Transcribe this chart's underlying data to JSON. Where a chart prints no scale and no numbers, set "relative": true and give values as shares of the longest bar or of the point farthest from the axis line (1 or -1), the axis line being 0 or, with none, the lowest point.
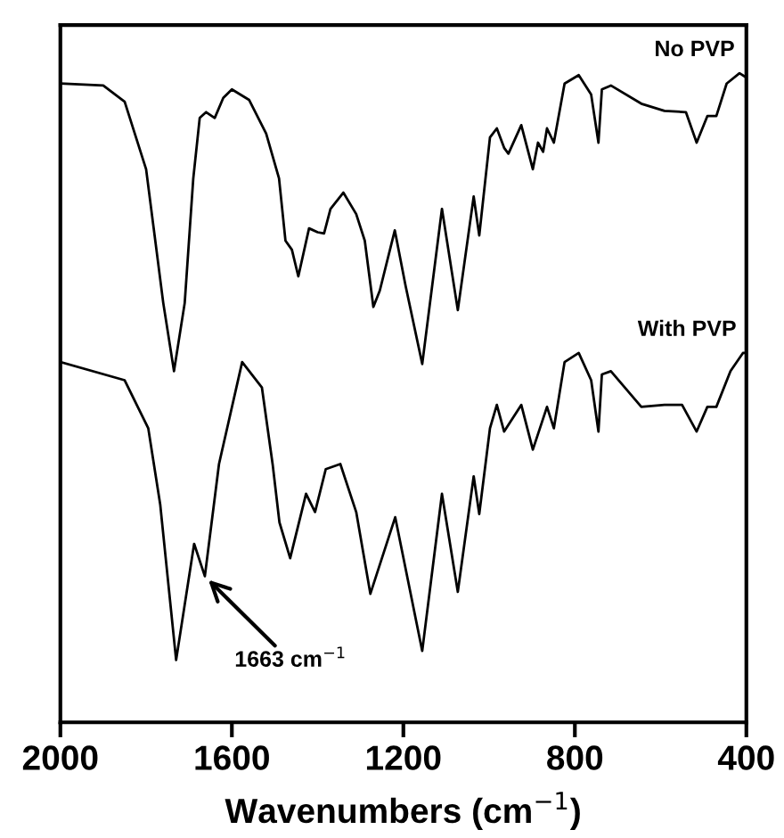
{
  "chart_data": {
    "type": "line",
    "relative": true,
    "xlabel": "Wavenumbers (cm$^{−1}$)",
    "xlim": [
      2000,
      400
    ],
    "xticks": [
      2000,
      1600,
      1200,
      800,
      400
    ],
    "grid": false,
    "legend": false,
    "marker": "none",
    "line_style": "solid",
    "series": [
      {
        "name": "No PVP",
        "color": "#000000",
        "x": [
          2000,
          1900,
          1850,
          1800,
          1760,
          1735,
          1710,
          1690,
          1675,
          1660,
          1640,
          1620,
          1600,
          1560,
          1520,
          1490,
          1475,
          1460,
          1445,
          1420,
          1400,
          1385,
          1370,
          1340,
          1310,
          1290,
          1270,
          1255,
          1220,
          1195,
          1156,
          1110,
          1073,
          1036,
          1023,
          998,
          982,
          965,
          955,
          925,
          898,
          886,
          874,
          865,
          849,
          824,
          791,
          762,
          745,
          737,
          716,
          645,
          591,
          541,
          516,
          491,
          470,
          446,
          416,
          404
        ],
        "values": [
          0.984,
          0.981,
          0.956,
          0.852,
          0.646,
          0.541,
          0.646,
          0.838,
          0.931,
          0.94,
          0.931,
          0.962,
          0.975,
          0.959,
          0.907,
          0.838,
          0.742,
          0.728,
          0.687,
          0.761,
          0.755,
          0.753,
          0.791,
          0.816,
          0.783,
          0.742,
          0.64,
          0.665,
          0.758,
          0.673,
          0.552,
          0.791,
          0.635,
          0.81,
          0.75,
          0.901,
          0.915,
          0.885,
          0.876,
          0.92,
          0.852,
          0.893,
          0.879,
          0.915,
          0.893,
          0.984,
          0.997,
          0.967,
          0.893,
          0.975,
          0.981,
          0.953,
          0.942,
          0.94,
          0.893,
          0.934,
          0.934,
          0.984,
          1.0,
          0.995
        ]
      },
      {
        "name": "With PVP",
        "color": "#000000",
        "x": [
          2000,
          1850,
          1795,
          1767,
          1730,
          1688,
          1663,
          1630,
          1576,
          1530,
          1505,
          1489,
          1464,
          1427,
          1406,
          1381,
          1347,
          1310,
          1277,
          1219,
          1156,
          1110,
          1073,
          1036,
          1023,
          998,
          982,
          965,
          925,
          898,
          865,
          849,
          824,
          791,
          762,
          745,
          737,
          716,
          645,
          591,
          550,
          516,
          491,
          470,
          437,
          408,
          400
        ],
        "values": [
          0.555,
          0.527,
          0.453,
          0.335,
          0.096,
          0.275,
          0.225,
          0.398,
          0.555,
          0.516,
          0.398,
          0.308,
          0.253,
          0.352,
          0.324,
          0.39,
          0.398,
          0.324,
          0.198,
          0.316,
          0.11,
          0.352,
          0.201,
          0.379,
          0.321,
          0.453,
          0.489,
          0.448,
          0.489,
          0.42,
          0.486,
          0.453,
          0.555,
          0.569,
          0.527,
          0.448,
          0.536,
          0.541,
          0.486,
          0.489,
          0.489,
          0.448,
          0.486,
          0.486,
          0.541,
          0.569,
          0.569
        ]
      }
    ],
    "annotations": [
      {
        "text": "1663 cm$^{−1}$",
        "x": 1663,
        "y": 0.225
      }
    ]
  }
}
